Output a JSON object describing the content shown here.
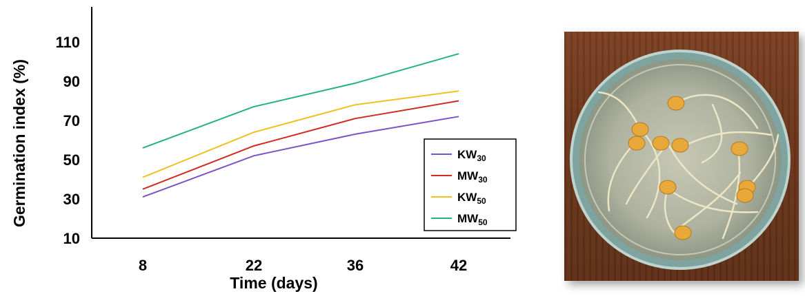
{
  "chart_data": {
    "type": "line",
    "x": [
      "8",
      "22",
      "36",
      "42"
    ],
    "ylabel": "Germination index (%)",
    "xlabel": "Time (days)",
    "ylim": [
      10,
      130
    ],
    "yticks": [
      "10",
      "30",
      "50",
      "70",
      "90",
      "110"
    ],
    "yticks_values": [
      10,
      30,
      50,
      70,
      90,
      110
    ],
    "legend_position": "right",
    "grid": false,
    "series": [
      {
        "name_main": "KW",
        "name_sub": "30",
        "color": "#7b52c9",
        "values": [
          31,
          52,
          63,
          72
        ]
      },
      {
        "name_main": "MW",
        "name_sub": "30",
        "color": "#d22a1e",
        "values": [
          35,
          57,
          71,
          80
        ]
      },
      {
        "name_main": "KW",
        "name_sub": "50",
        "color": "#f0c020",
        "values": [
          41,
          64,
          78,
          85
        ]
      },
      {
        "name_main": "MW",
        "name_sub": "50",
        "color": "#25b276",
        "values": [
          56,
          77,
          89,
          104
        ]
      }
    ]
  },
  "photo": {
    "background_color": "#6b3519",
    "dish_color": "#a8b09c",
    "rim_color": "#7fa4a0",
    "seed_color": "#e8a83a",
    "sprout_color": "#ece6c6"
  }
}
